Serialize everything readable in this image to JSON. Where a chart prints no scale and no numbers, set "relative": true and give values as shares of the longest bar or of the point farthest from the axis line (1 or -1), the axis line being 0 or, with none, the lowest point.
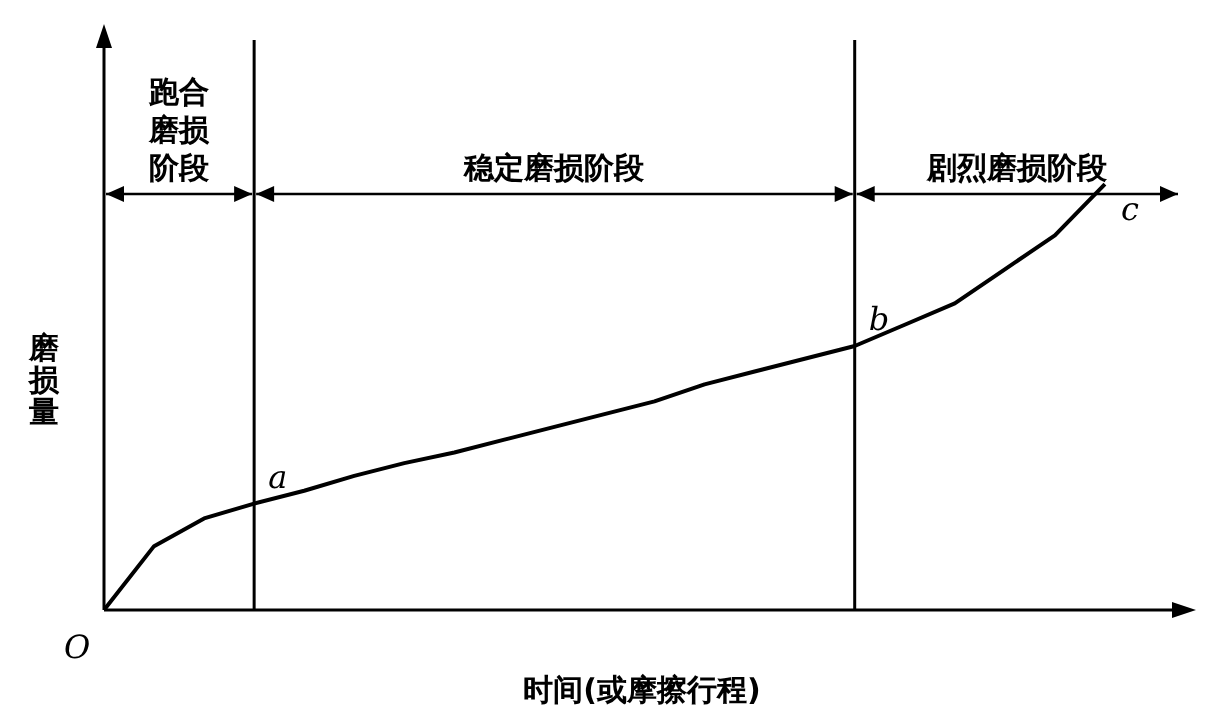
{
  "chart_data": {
    "type": "line",
    "relative": true,
    "xlabel": "时间(或摩擦行程)",
    "ylabel": "磨损量",
    "marker": "none",
    "line_style": "solid",
    "categories": [
      null,
      null,
      null,
      null,
      null,
      null,
      null,
      null,
      null,
      null,
      null,
      null,
      null,
      null,
      null,
      null,
      null,
      null,
      null,
      null,
      null,
      null
    ],
    "series": [
      {
        "color": "#000000",
        "values": [
          0,
          0.15,
          0.215,
          0.25,
          0.28,
          0.315,
          0.345,
          0.37,
          0.4,
          0.43,
          0.46,
          0.49,
          0.53,
          0.56,
          0.59,
          0.62,
          0.67,
          0.72,
          0.8,
          0.88,
          1,
          null
        ]
      }
    ],
    "annotations": [
      "O",
      "跑合磨损阶段",
      "稳定磨损阶段",
      "剧烈磨损阶段",
      "c",
      {
        "text": "a",
        "y": 0.25
      },
      {
        "text": "b",
        "y": 0.62
      }
    ]
  }
}
